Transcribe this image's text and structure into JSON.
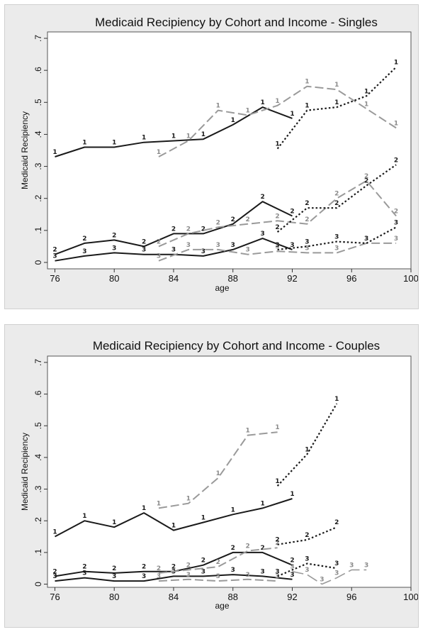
{
  "chart_data": [
    {
      "type": "line",
      "title": "Medicaid Recipiency by Cohort and Income - Singles",
      "xlabel": "age",
      "ylabel": "Medicaid Recipiency",
      "xlim": [
        75.5,
        100
      ],
      "ylim": [
        -0.02,
        0.72
      ],
      "x_ticks": [
        "76",
        "80",
        "84",
        "88",
        "92",
        "96",
        "100"
      ],
      "y_ticks": [
        ".7",
        ".6",
        ".5",
        ".4",
        ".3",
        ".2",
        ".1",
        "0"
      ],
      "series": [
        {
          "style": "solid",
          "marker": "1",
          "x": [
            76,
            78,
            80,
            82,
            84,
            86,
            88,
            90,
            92
          ],
          "values": [
            0.33,
            0.36,
            0.36,
            0.375,
            0.38,
            0.385,
            0.43,
            0.485,
            0.45
          ]
        },
        {
          "style": "solid",
          "marker": "2",
          "x": [
            76,
            78,
            80,
            82,
            84,
            86,
            88,
            90,
            92
          ],
          "values": [
            0.025,
            0.06,
            0.07,
            0.05,
            0.09,
            0.09,
            0.12,
            0.19,
            0.145
          ]
        },
        {
          "style": "solid",
          "marker": "3",
          "x": [
            76,
            78,
            80,
            82,
            84,
            86,
            88,
            90,
            92
          ],
          "values": [
            0.005,
            0.02,
            0.03,
            0.025,
            0.025,
            0.02,
            0.04,
            0.075,
            0.04
          ]
        },
        {
          "style": "dash",
          "marker": "1",
          "x": [
            83,
            85,
            87,
            89,
            91,
            93,
            95,
            97,
            99
          ],
          "values": [
            0.33,
            0.38,
            0.475,
            0.46,
            0.49,
            0.55,
            0.54,
            0.48,
            0.42
          ]
        },
        {
          "style": "dash",
          "marker": "2",
          "x": [
            83,
            85,
            87,
            89,
            91,
            93,
            95,
            97,
            99
          ],
          "values": [
            0.05,
            0.09,
            0.11,
            0.12,
            0.13,
            0.12,
            0.2,
            0.255,
            0.145
          ]
        },
        {
          "style": "dash",
          "marker": "3",
          "x": [
            83,
            85,
            87,
            89,
            91,
            93,
            95,
            97,
            99
          ],
          "values": [
            0.005,
            0.04,
            0.04,
            0.025,
            0.035,
            0.03,
            0.03,
            0.06,
            0.06
          ]
        },
        {
          "style": "dot",
          "marker": "1",
          "x": [
            91,
            93,
            95,
            97,
            99
          ],
          "values": [
            0.355,
            0.475,
            0.485,
            0.52,
            0.61
          ]
        },
        {
          "style": "dot",
          "marker": "2",
          "x": [
            91,
            93,
            95,
            97,
            99
          ],
          "values": [
            0.095,
            0.17,
            0.17,
            0.24,
            0.305
          ]
        },
        {
          "style": "dot",
          "marker": "3",
          "x": [
            91,
            93,
            95,
            97,
            99
          ],
          "values": [
            0.04,
            0.05,
            0.065,
            0.06,
            0.11
          ]
        }
      ]
    },
    {
      "type": "line",
      "title": "Medicaid Recipiency by Cohort and Income - Couples",
      "xlabel": "age",
      "ylabel": "Medicaid Recipiency",
      "xlim": [
        75.5,
        100
      ],
      "ylim": [
        -0.01,
        0.72
      ],
      "x_ticks": [
        "76",
        "80",
        "84",
        "88",
        "92",
        "96",
        "100"
      ],
      "y_ticks": [
        ".7",
        ".6",
        ".5",
        ".4",
        ".3",
        ".2",
        ".1",
        "0"
      ],
      "series": [
        {
          "style": "solid",
          "marker": "1",
          "x": [
            76,
            78,
            80,
            82,
            84,
            86,
            88,
            90,
            92
          ],
          "values": [
            0.15,
            0.2,
            0.18,
            0.225,
            0.17,
            0.195,
            0.22,
            0.24,
            0.27
          ]
        },
        {
          "style": "solid",
          "marker": "2",
          "x": [
            76,
            78,
            80,
            82,
            84,
            86,
            88,
            90,
            92
          ],
          "values": [
            0.025,
            0.04,
            0.035,
            0.04,
            0.04,
            0.06,
            0.1,
            0.1,
            0.06
          ]
        },
        {
          "style": "solid",
          "marker": "3",
          "x": [
            76,
            78,
            80,
            82,
            84,
            86,
            88,
            90,
            92
          ],
          "values": [
            0.01,
            0.02,
            0.01,
            0.01,
            0.025,
            0.025,
            0.03,
            0.025,
            0.015
          ]
        },
        {
          "style": "dash",
          "marker": "1",
          "x": [
            83,
            85,
            87,
            89,
            91
          ],
          "values": [
            0.24,
            0.255,
            0.335,
            0.47,
            0.48
          ]
        },
        {
          "style": "dash",
          "marker": "2",
          "x": [
            83,
            85,
            87,
            89,
            91
          ],
          "values": [
            0.035,
            0.045,
            0.055,
            0.105,
            0.115
          ]
        },
        {
          "style": "dash",
          "marker": "3",
          "x": [
            83,
            85,
            87,
            89,
            91
          ],
          "values": [
            0.01,
            0.015,
            0.01,
            0.015,
            0.01
          ]
        },
        {
          "style": "dot",
          "marker": "1",
          "x": [
            91,
            93,
            95
          ],
          "values": [
            0.31,
            0.41,
            0.57
          ]
        },
        {
          "style": "dot",
          "marker": "2",
          "x": [
            91,
            93,
            95
          ],
          "values": [
            0.125,
            0.14,
            0.18
          ]
        },
        {
          "style": "dot",
          "marker": "3",
          "x": [
            91,
            93,
            95
          ],
          "values": [
            0.025,
            0.065,
            0.05
          ]
        },
        {
          "style": "longdash",
          "marker": "3",
          "x": [
            92,
            93,
            94,
            95,
            96,
            97
          ],
          "values": [
            0.04,
            0.03,
            0.0,
            0.02,
            0.045,
            0.045
          ]
        }
      ]
    }
  ]
}
